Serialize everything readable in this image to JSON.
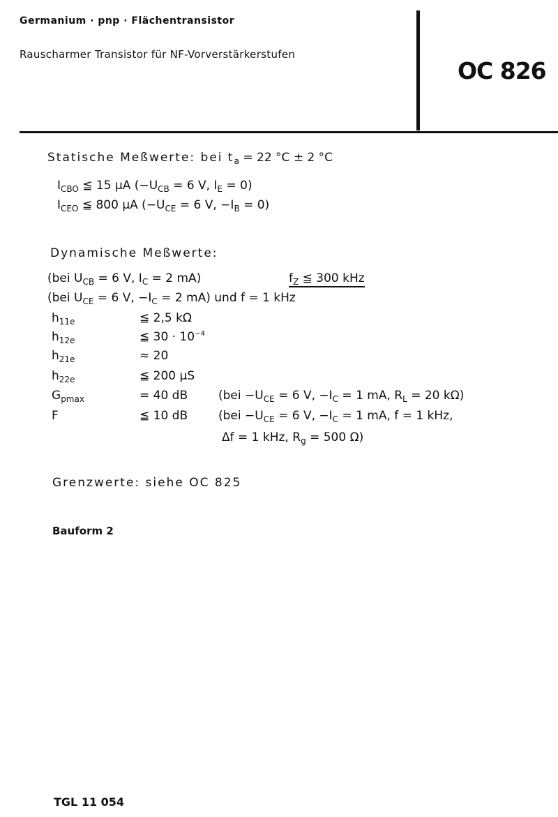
{
  "header": {
    "material": "Germanium · pnp · Flächentransistor",
    "description": "Rauscharmer Transistor für NF-Vorverstärkerstufen",
    "type_designation": "OC 826"
  },
  "static": {
    "title": "Statische Meßwerte: bei t",
    "title_sub": "a",
    "title_rest": " = 22 °C ± 2 °C",
    "rows": [
      {
        "sym": "I",
        "sym_sub": "CBO",
        "text": " ≦ 15  µA (−U",
        "sub2": "CB",
        "text2": " = 6 V,  I",
        "sub3": "E",
        "text3": " = 0)"
      },
      {
        "sym": "I",
        "sym_sub": "CEO",
        "text": " ≦ 800 µA (−U",
        "sub2": "CE",
        "text2": " = 6 V, −I",
        "sub3": "B",
        "text3": " = 0)"
      }
    ]
  },
  "dynamic": {
    "title": "Dynamische Meßwerte:",
    "cond1": {
      "a": "(bei  U",
      "a_sub": "CB",
      "b": " = 6 V,  I",
      "b_sub": "C",
      "c": " = 2 mA)",
      "f": "f",
      "f_sub": "Z",
      "f_val": " ≦ 300 kHz"
    },
    "cond2": {
      "a": "(bei  U",
      "a_sub": "CE",
      "b": " = 6 V, −I",
      "b_sub": "C",
      "c": " = 2 mA) und f = 1 kHz"
    },
    "params": [
      {
        "sym": "h",
        "sub": "11e",
        "val": "≦ 2,5 kΩ",
        "exp": ""
      },
      {
        "sym": "h",
        "sub": "12e",
        "val": "≦ 30 · 10",
        "exp": "−4"
      },
      {
        "sym": "h",
        "sub": "21e",
        "val": "≈ 20",
        "exp": ""
      },
      {
        "sym": "h",
        "sub": "22e",
        "val": "≦ 200 µS",
        "exp": ""
      }
    ],
    "gpmax": {
      "sym": "G",
      "sub": "pmax",
      "val": "= 40  dB",
      "c1": "(bei −U",
      "c1_sub": "CE",
      "c2": " = 6 V, −I",
      "c2_sub": "C",
      "c3": " = 1 mA, R",
      "c3_sub": "L",
      "c4": " = 20 kΩ)"
    },
    "noise": {
      "sym": "F",
      "val": "≦ 10  dB",
      "c1": "(bei −U",
      "c1_sub": "CE",
      "c2": " = 6 V, −I",
      "c2_sub": "C",
      "c3": " = 1 mA,   f = 1 kHz,",
      "line2a": "Δf = 1 kHz, R",
      "line2_sub": "g",
      "line2b": " = 500 Ω)"
    }
  },
  "limits": "Grenzwerte: siehe OC 825",
  "package": "Bauform 2",
  "standard": "TGL 11 054"
}
